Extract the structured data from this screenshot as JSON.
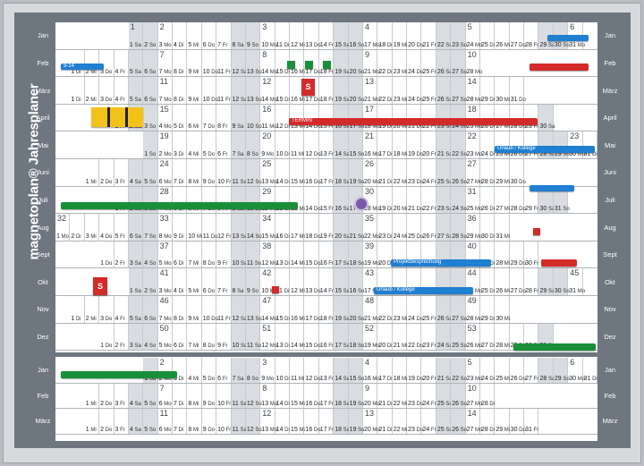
{
  "brand": {
    "title": "magnetoplan® Jahresplaner"
  },
  "months_main": [
    "Jan",
    "Feb",
    "März",
    "April",
    "Mai",
    "Juni",
    "Juli",
    "Aug",
    "Sept",
    "Okt",
    "Nov",
    "Dez"
  ],
  "months_next": [
    "Jan",
    "Feb",
    "März"
  ],
  "weekday_abbrev": [
    "Mo",
    "Di",
    "Mi",
    "Do",
    "Fr",
    "Sa",
    "So"
  ],
  "year_start_weekday": 5,
  "next_year_start_weekday": 6,
  "week_numbers": [
    "1",
    "2",
    "3",
    "4",
    "5",
    "6",
    "7",
    "8",
    "9",
    "10",
    "11",
    "12",
    "13",
    "14",
    "15",
    "16",
    "17",
    "18",
    "19",
    "20",
    "21",
    "22",
    "23",
    "24",
    "25",
    "26",
    "27",
    "28",
    "29",
    "30",
    "31",
    "32",
    "33",
    "34",
    "35",
    "36",
    "37",
    "38",
    "39",
    "40",
    "41",
    "42",
    "43",
    "44",
    "45",
    "46",
    "47",
    "48",
    "49",
    "50",
    "51",
    "52",
    "53"
  ],
  "magnets": {
    "bars": [
      {
        "color": "#1f7fd1",
        "label": ""
      },
      {
        "color": "#1f7fd1",
        "label": "9-14"
      },
      {
        "color": "#d42a2a",
        "label": ""
      },
      {
        "color": "#d42a2a",
        "label": "TERMIN"
      },
      {
        "color": "#1f7fd1",
        "label": "Urlaub / Kollege"
      },
      {
        "color": "#1f7fd1",
        "label": ""
      },
      {
        "color": "#1a8f3a",
        "label": ""
      },
      {
        "color": "#1f7fd1",
        "label": "Projektbesprechung"
      },
      {
        "color": "#d42a2a",
        "label": ""
      },
      {
        "color": "#1f7fd1",
        "label": "Urlaub / Kollege"
      },
      {
        "color": "#1a8f3a",
        "label": ""
      },
      {
        "color": "#1a8f3a",
        "label": ""
      }
    ],
    "squares": [
      {
        "color": "#1a8f3a",
        "label": ""
      },
      {
        "color": "#1a8f3a",
        "label": ""
      },
      {
        "color": "#1a8f3a",
        "label": ""
      },
      {
        "color": "#d42a2a",
        "label": "S"
      },
      {
        "color": "#f3c21a",
        "label": ""
      },
      {
        "color": "#f3c21a",
        "label": ""
      },
      {
        "color": "#f3c21a",
        "label": ""
      },
      {
        "color": "#d42a2a",
        "label": "S"
      },
      {
        "color": "#d42a2a",
        "label": ""
      },
      {
        "color": "#d42a2a",
        "label": ""
      }
    ]
  }
}
